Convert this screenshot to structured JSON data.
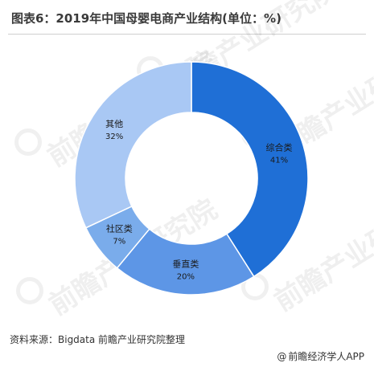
{
  "header": {
    "title": "图表6：2019年中国母婴电商产业结构(单位：%)"
  },
  "chart_data": {
    "type": "pie",
    "variant": "donut",
    "categories": [
      "综合类",
      "垂直类",
      "社区类",
      "其他"
    ],
    "values": [
      41,
      20,
      7,
      32
    ],
    "value_labels": [
      "41%",
      "20%",
      "7%",
      "32%"
    ],
    "colors": [
      "#1f6fd6",
      "#5d96e6",
      "#7aaceb",
      "#a9c8f4"
    ],
    "legend": "none"
  },
  "footer": {
    "source": "资料来源：Bigdata 前瞻产业研究院整理",
    "credit": "前瞻经济学人APP",
    "credit_icon": "at-sign-icon"
  },
  "watermark": {
    "text": "前瞻产业研究院"
  }
}
